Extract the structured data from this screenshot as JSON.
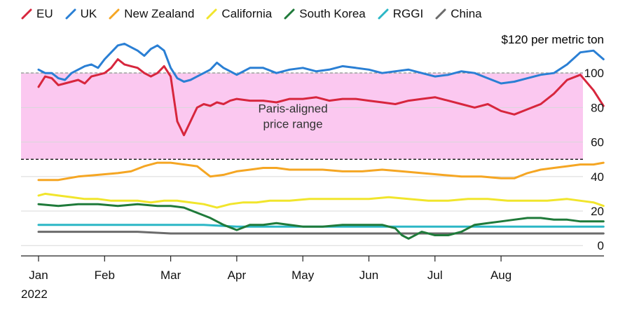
{
  "chart_data": {
    "type": "line",
    "unit_label": "$120 per metric ton",
    "year_label": "2022",
    "x_ticks": [
      "Jan",
      "Feb",
      "Mar",
      "Apr",
      "May",
      "Jun",
      "Jul",
      "Aug"
    ],
    "y_ticks": [
      "100",
      "80",
      "60",
      "40",
      "20",
      "0"
    ],
    "y_tick_values": [
      100,
      80,
      60,
      40,
      20,
      0
    ],
    "ylim": [
      -6,
      120
    ],
    "xlim": [
      0,
      8.65
    ],
    "band": {
      "label_line1": "Paris-aligned",
      "label_line2": "price range",
      "ymin": 50,
      "ymax": 100,
      "color": "#fbc8f0"
    },
    "series": [
      {
        "name": "EU",
        "color": "#d7263d",
        "x": [
          0,
          0.1,
          0.2,
          0.3,
          0.4,
          0.5,
          0.6,
          0.7,
          0.8,
          0.9,
          1.0,
          1.1,
          1.2,
          1.3,
          1.4,
          1.5,
          1.6,
          1.7,
          1.8,
          1.9,
          2.0,
          2.1,
          2.2,
          2.3,
          2.4,
          2.5,
          2.6,
          2.7,
          2.8,
          2.9,
          3.0,
          3.2,
          3.4,
          3.6,
          3.8,
          4.0,
          4.2,
          4.4,
          4.6,
          4.8,
          5.0,
          5.2,
          5.4,
          5.6,
          5.8,
          6.0,
          6.2,
          6.4,
          6.6,
          6.8,
          7.0,
          7.2,
          7.4,
          7.6,
          7.8,
          8.0,
          8.2,
          8.4,
          8.55
        ],
        "values": [
          92,
          98,
          97,
          93,
          94,
          95,
          96,
          94,
          98,
          99,
          100,
          103,
          108,
          105,
          104,
          103,
          100,
          98,
          100,
          104,
          98,
          72,
          64,
          72,
          80,
          82,
          81,
          83,
          82,
          84,
          85,
          84,
          84,
          83,
          85,
          85,
          86,
          84,
          85,
          85,
          84,
          83,
          82,
          84,
          85,
          86,
          84,
          82,
          80,
          82,
          78,
          76,
          79,
          82,
          88,
          96,
          99,
          90,
          81
        ]
      },
      {
        "name": "UK",
        "color": "#2a7fd4",
        "x": [
          0,
          0.1,
          0.2,
          0.3,
          0.4,
          0.5,
          0.6,
          0.7,
          0.8,
          0.9,
          1.0,
          1.1,
          1.2,
          1.3,
          1.4,
          1.5,
          1.6,
          1.7,
          1.8,
          1.9,
          2.0,
          2.1,
          2.2,
          2.3,
          2.4,
          2.5,
          2.6,
          2.7,
          2.8,
          2.9,
          3.0,
          3.2,
          3.4,
          3.6,
          3.8,
          4.0,
          4.2,
          4.4,
          4.6,
          4.8,
          5.0,
          5.2,
          5.4,
          5.6,
          5.8,
          6.0,
          6.2,
          6.4,
          6.6,
          6.8,
          7.0,
          7.2,
          7.4,
          7.6,
          7.8,
          8.0,
          8.2,
          8.4,
          8.55
        ],
        "values": [
          102,
          100,
          100,
          97,
          96,
          100,
          102,
          104,
          105,
          103,
          108,
          112,
          116,
          117,
          115,
          113,
          110,
          114,
          116,
          113,
          103,
          97,
          95,
          96,
          98,
          100,
          102,
          106,
          103,
          101,
          99,
          103,
          103,
          100,
          102,
          103,
          101,
          102,
          104,
          103,
          102,
          100,
          101,
          102,
          100,
          98,
          99,
          101,
          100,
          97,
          94,
          95,
          97,
          99,
          100,
          105,
          112,
          113,
          108
        ]
      },
      {
        "name": "New Zealand",
        "color": "#f5a623",
        "x": [
          0,
          0.3,
          0.6,
          0.9,
          1.2,
          1.4,
          1.6,
          1.8,
          2.0,
          2.2,
          2.4,
          2.6,
          2.8,
          3.0,
          3.2,
          3.4,
          3.6,
          3.8,
          4.0,
          4.3,
          4.6,
          4.9,
          5.2,
          5.5,
          5.8,
          6.1,
          6.4,
          6.7,
          7.0,
          7.2,
          7.4,
          7.6,
          7.8,
          8.0,
          8.2,
          8.4,
          8.55
        ],
        "values": [
          38,
          38,
          40,
          41,
          42,
          43,
          46,
          48,
          48,
          47,
          46,
          40,
          41,
          43,
          44,
          45,
          45,
          44,
          44,
          44,
          43,
          43,
          44,
          43,
          42,
          41,
          40,
          40,
          39,
          39,
          42,
          44,
          45,
          46,
          47,
          47,
          48
        ]
      },
      {
        "name": "California",
        "color": "#f1e52c",
        "x": [
          0,
          0.1,
          0.3,
          0.5,
          0.7,
          0.9,
          1.1,
          1.3,
          1.5,
          1.7,
          1.9,
          2.1,
          2.3,
          2.5,
          2.7,
          2.9,
          3.1,
          3.3,
          3.5,
          3.8,
          4.1,
          4.4,
          4.7,
          5.0,
          5.3,
          5.6,
          5.9,
          6.2,
          6.5,
          6.8,
          7.1,
          7.4,
          7.7,
          8.0,
          8.2,
          8.4,
          8.55
        ],
        "values": [
          29,
          30,
          29,
          28,
          27,
          27,
          26,
          26,
          26,
          25,
          26,
          26,
          25,
          24,
          22,
          24,
          25,
          25,
          26,
          26,
          27,
          27,
          27,
          27,
          28,
          27,
          26,
          26,
          27,
          27,
          26,
          26,
          26,
          27,
          26,
          25,
          23
        ]
      },
      {
        "name": "South Korea",
        "color": "#1f7a3a",
        "x": [
          0,
          0.3,
          0.6,
          0.9,
          1.2,
          1.5,
          1.8,
          2.0,
          2.2,
          2.4,
          2.6,
          2.8,
          3.0,
          3.2,
          3.4,
          3.6,
          3.8,
          4.0,
          4.3,
          4.6,
          4.9,
          5.2,
          5.3,
          5.4,
          5.5,
          5.6,
          5.8,
          6.0,
          6.2,
          6.4,
          6.6,
          6.8,
          7.0,
          7.2,
          7.4,
          7.6,
          7.8,
          8.0,
          8.2,
          8.4,
          8.55
        ],
        "values": [
          24,
          23,
          24,
          24,
          23,
          24,
          23,
          23,
          22,
          19,
          16,
          12,
          9,
          12,
          12,
          13,
          12,
          11,
          11,
          12,
          12,
          12,
          11,
          10,
          6,
          4,
          8,
          6,
          6,
          8,
          12,
          13,
          14,
          15,
          16,
          16,
          15,
          15,
          14,
          14,
          14
        ]
      },
      {
        "name": "RGGI",
        "color": "#2bb7c6",
        "x": [
          0,
          0.5,
          1.0,
          1.5,
          2.0,
          2.5,
          3.0,
          3.5,
          4.0,
          4.5,
          5.0,
          5.5,
          6.0,
          6.5,
          7.0,
          7.5,
          8.0,
          8.55
        ],
        "values": [
          12,
          12,
          12,
          12,
          12,
          12,
          11,
          11,
          11,
          11,
          11,
          11,
          11,
          11,
          11,
          11,
          11,
          11
        ]
      },
      {
        "name": "China",
        "color": "#6b6b6b",
        "x": [
          0,
          0.5,
          1.0,
          1.5,
          2.0,
          2.5,
          3.0,
          3.5,
          4.0,
          4.5,
          5.0,
          5.5,
          6.0,
          6.5,
          7.0,
          7.5,
          8.0,
          8.55
        ],
        "values": [
          8,
          8,
          8,
          8,
          7,
          7,
          7,
          7,
          7,
          7,
          7,
          7,
          7,
          7,
          7,
          7,
          7,
          7
        ]
      }
    ]
  }
}
